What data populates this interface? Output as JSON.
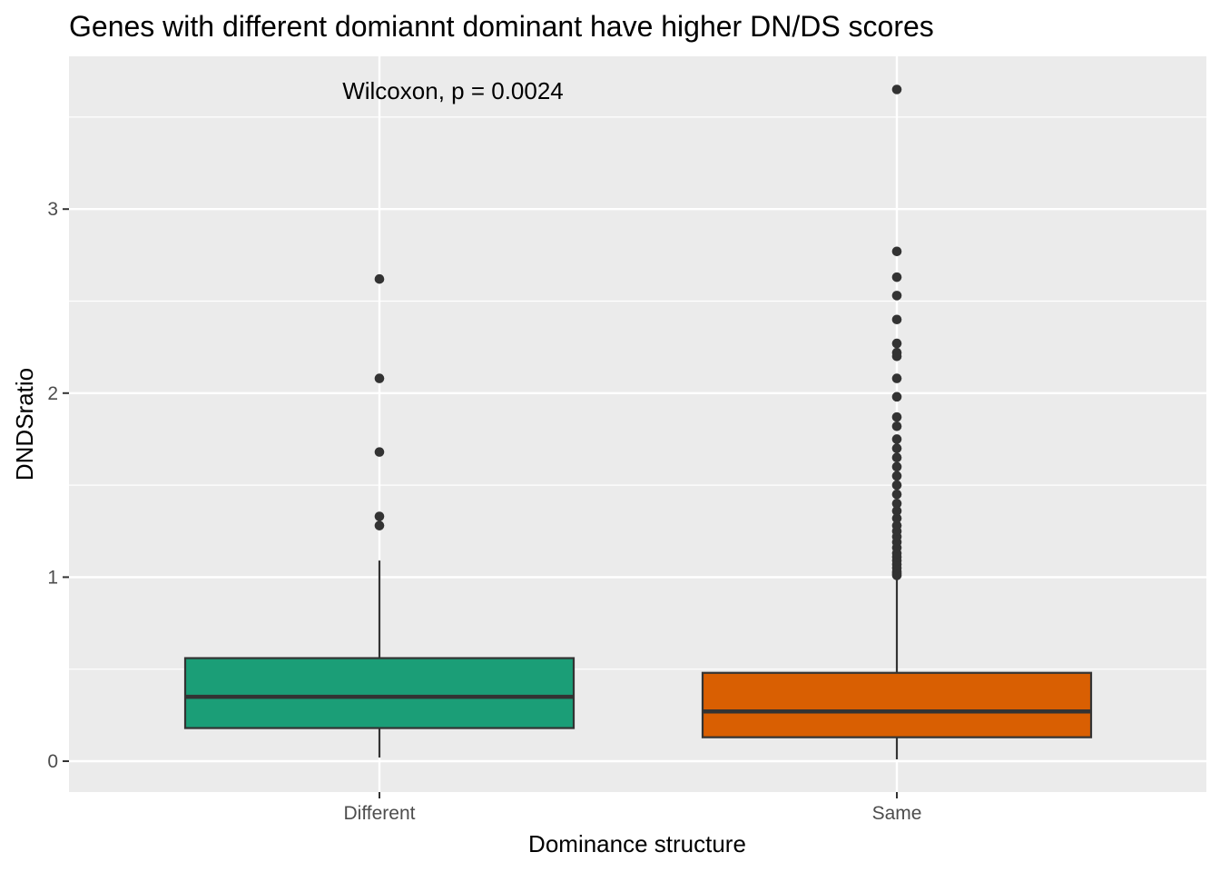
{
  "chart_data": {
    "type": "boxplot",
    "title": "Genes with different domiannt dominant have higher DN/DS scores",
    "xlabel": "Dominance structure",
    "ylabel": "DNDSratio",
    "annotation": "Wilcoxon, p = 0.0024",
    "ylim": [
      -0.17,
      3.8
    ],
    "y_ticks": [
      0,
      1,
      2,
      3
    ],
    "y_tick_labels": [
      "0",
      "1",
      "2",
      "3"
    ],
    "categories": [
      "Different",
      "Same"
    ],
    "grid": true,
    "legend": "none",
    "series": [
      {
        "category": "Different",
        "color": "#1b9e77",
        "whisker_low": 0.02,
        "q1": 0.18,
        "median": 0.35,
        "q3": 0.56,
        "whisker_high": 1.09,
        "outliers": [
          1.28,
          1.33,
          1.68,
          2.08,
          2.62
        ]
      },
      {
        "category": "Same",
        "color": "#d95f02",
        "whisker_low": 0.01,
        "q1": 0.13,
        "median": 0.27,
        "q3": 0.48,
        "whisker_high": 1.0,
        "outliers": [
          1.01,
          1.02,
          1.03,
          1.05,
          1.07,
          1.09,
          1.11,
          1.13,
          1.16,
          1.19,
          1.22,
          1.25,
          1.28,
          1.32,
          1.36,
          1.4,
          1.45,
          1.5,
          1.55,
          1.6,
          1.65,
          1.7,
          1.75,
          1.82,
          1.87,
          1.98,
          2.08,
          2.2,
          2.22,
          2.27,
          2.4,
          2.53,
          2.63,
          2.77,
          3.65
        ]
      }
    ]
  }
}
